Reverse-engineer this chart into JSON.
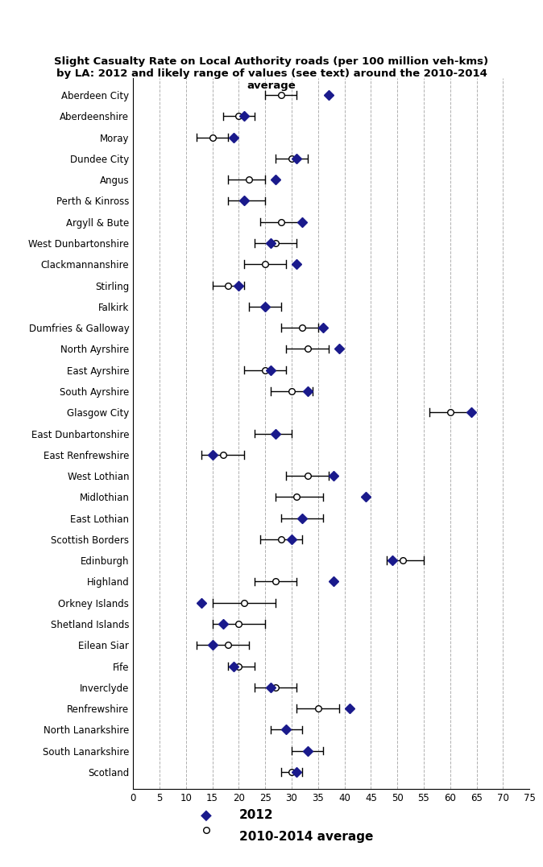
{
  "title": "Slight Casualty Rate on Local Authority roads (per 100 million veh-kms)\nby LA: 2012 and likely range of values (see text) around the 2010-2014\naverage",
  "categories": [
    "Aberdeen City",
    "Aberdeenshire",
    "Moray",
    "Dundee City",
    "Angus",
    "Perth & Kinross",
    "Argyll & Bute",
    "West Dunbartonshire",
    "Clackmannanshire",
    "Stirling",
    "Falkirk",
    "Dumfries & Galloway",
    "North Ayrshire",
    "East Ayrshire",
    "South Ayrshire",
    "Glasgow City",
    "East Dunbartonshire",
    "East Renfrewshire",
    "West Lothian",
    "Midlothian",
    "East Lothian",
    "Scottish Borders",
    "Edinburgh",
    "Highland",
    "Orkney Islands",
    "Shetland Islands",
    "Eilean Siar",
    "Fife",
    "Inverclyde",
    "Renfrewshire",
    "North Lanarkshire",
    "South Lanarkshire",
    "Scotland"
  ],
  "val2012": [
    37,
    21,
    19,
    31,
    27,
    21,
    32,
    26,
    31,
    20,
    25,
    36,
    39,
    26,
    33,
    64,
    27,
    15,
    38,
    44,
    32,
    30,
    49,
    38,
    13,
    17,
    15,
    19,
    26,
    41,
    29,
    33,
    31
  ],
  "avg_center": [
    28,
    20,
    15,
    30,
    22,
    21,
    28,
    27,
    25,
    18,
    25,
    32,
    33,
    25,
    30,
    60,
    27,
    17,
    33,
    31,
    32,
    28,
    51,
    27,
    21,
    20,
    18,
    20,
    27,
    35,
    29,
    33,
    30
  ],
  "avg_low": [
    25,
    17,
    12,
    27,
    18,
    18,
    24,
    23,
    21,
    15,
    22,
    28,
    29,
    21,
    26,
    56,
    23,
    13,
    29,
    27,
    28,
    24,
    48,
    23,
    15,
    15,
    12,
    18,
    23,
    31,
    26,
    30,
    28
  ],
  "avg_high": [
    31,
    23,
    18,
    33,
    25,
    25,
    32,
    31,
    29,
    21,
    28,
    35,
    37,
    29,
    34,
    64,
    30,
    21,
    37,
    36,
    36,
    32,
    55,
    31,
    27,
    25,
    22,
    23,
    31,
    39,
    32,
    36,
    32
  ],
  "color_2012": "#1a1a8c",
  "xlim": [
    0,
    75
  ],
  "xticks": [
    0,
    5,
    10,
    15,
    20,
    25,
    30,
    35,
    40,
    45,
    50,
    55,
    60,
    65,
    70,
    75
  ],
  "background_color": "#ffffff",
  "grid_color": "#b0b0b0"
}
